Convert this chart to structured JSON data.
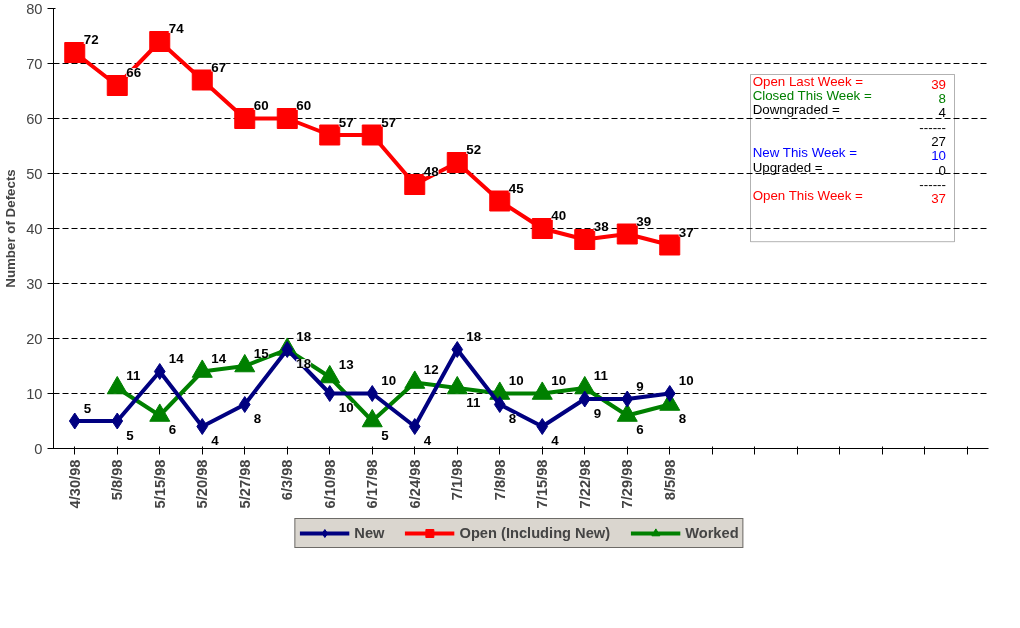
{
  "chart_data": {
    "type": "line",
    "ylabel": "Number of Defects",
    "categories": [
      "4/30/98",
      "5/8/98",
      "5/15/98",
      "5/20/98",
      "5/27/98",
      "6/3/98",
      "6/10/98",
      "6/17/98",
      "6/24/98",
      "7/1/98",
      "7/8/98",
      "7/15/98",
      "7/22/98",
      "7/29/98",
      "8/5/98",
      null,
      null,
      null,
      null,
      null,
      null,
      null
    ],
    "series": [
      {
        "name": "New",
        "color": "#000080",
        "marker": "diamond",
        "values": [
          5,
          5,
          14,
          4,
          8,
          18,
          10,
          10,
          4,
          18,
          8,
          4,
          9,
          9,
          10,
          null,
          null,
          null,
          null,
          null,
          null,
          null
        ]
      },
      {
        "name": "Open (Including New)",
        "color": "#ff0000",
        "marker": "square",
        "values": [
          72,
          66,
          74,
          67,
          60,
          60,
          57,
          57,
          48,
          52,
          45,
          40,
          38,
          39,
          37,
          null,
          null,
          null,
          null,
          null,
          null,
          null
        ]
      },
      {
        "name": "Worked",
        "color": "#008000",
        "marker": "triangle",
        "values": [
          null,
          11,
          6,
          14,
          15,
          18,
          13,
          5,
          12,
          11,
          10,
          10,
          11,
          6,
          8,
          null,
          null,
          null,
          null,
          null,
          null,
          null
        ]
      }
    ],
    "ylim": [
      0,
      80
    ],
    "yticks": [
      0,
      10,
      20,
      30,
      40,
      50,
      60,
      70,
      80
    ],
    "grid": "y",
    "legend": "bottom",
    "data_labels": true,
    "line_style": "solid",
    "annotations": [
      "Open Last Week = 39",
      "Closed This Week = 8",
      "Downgraded = 4",
      "------",
      "27",
      "New This Week = 10",
      "Upgraded = 0",
      "------",
      "Open This Week = 37"
    ]
  }
}
